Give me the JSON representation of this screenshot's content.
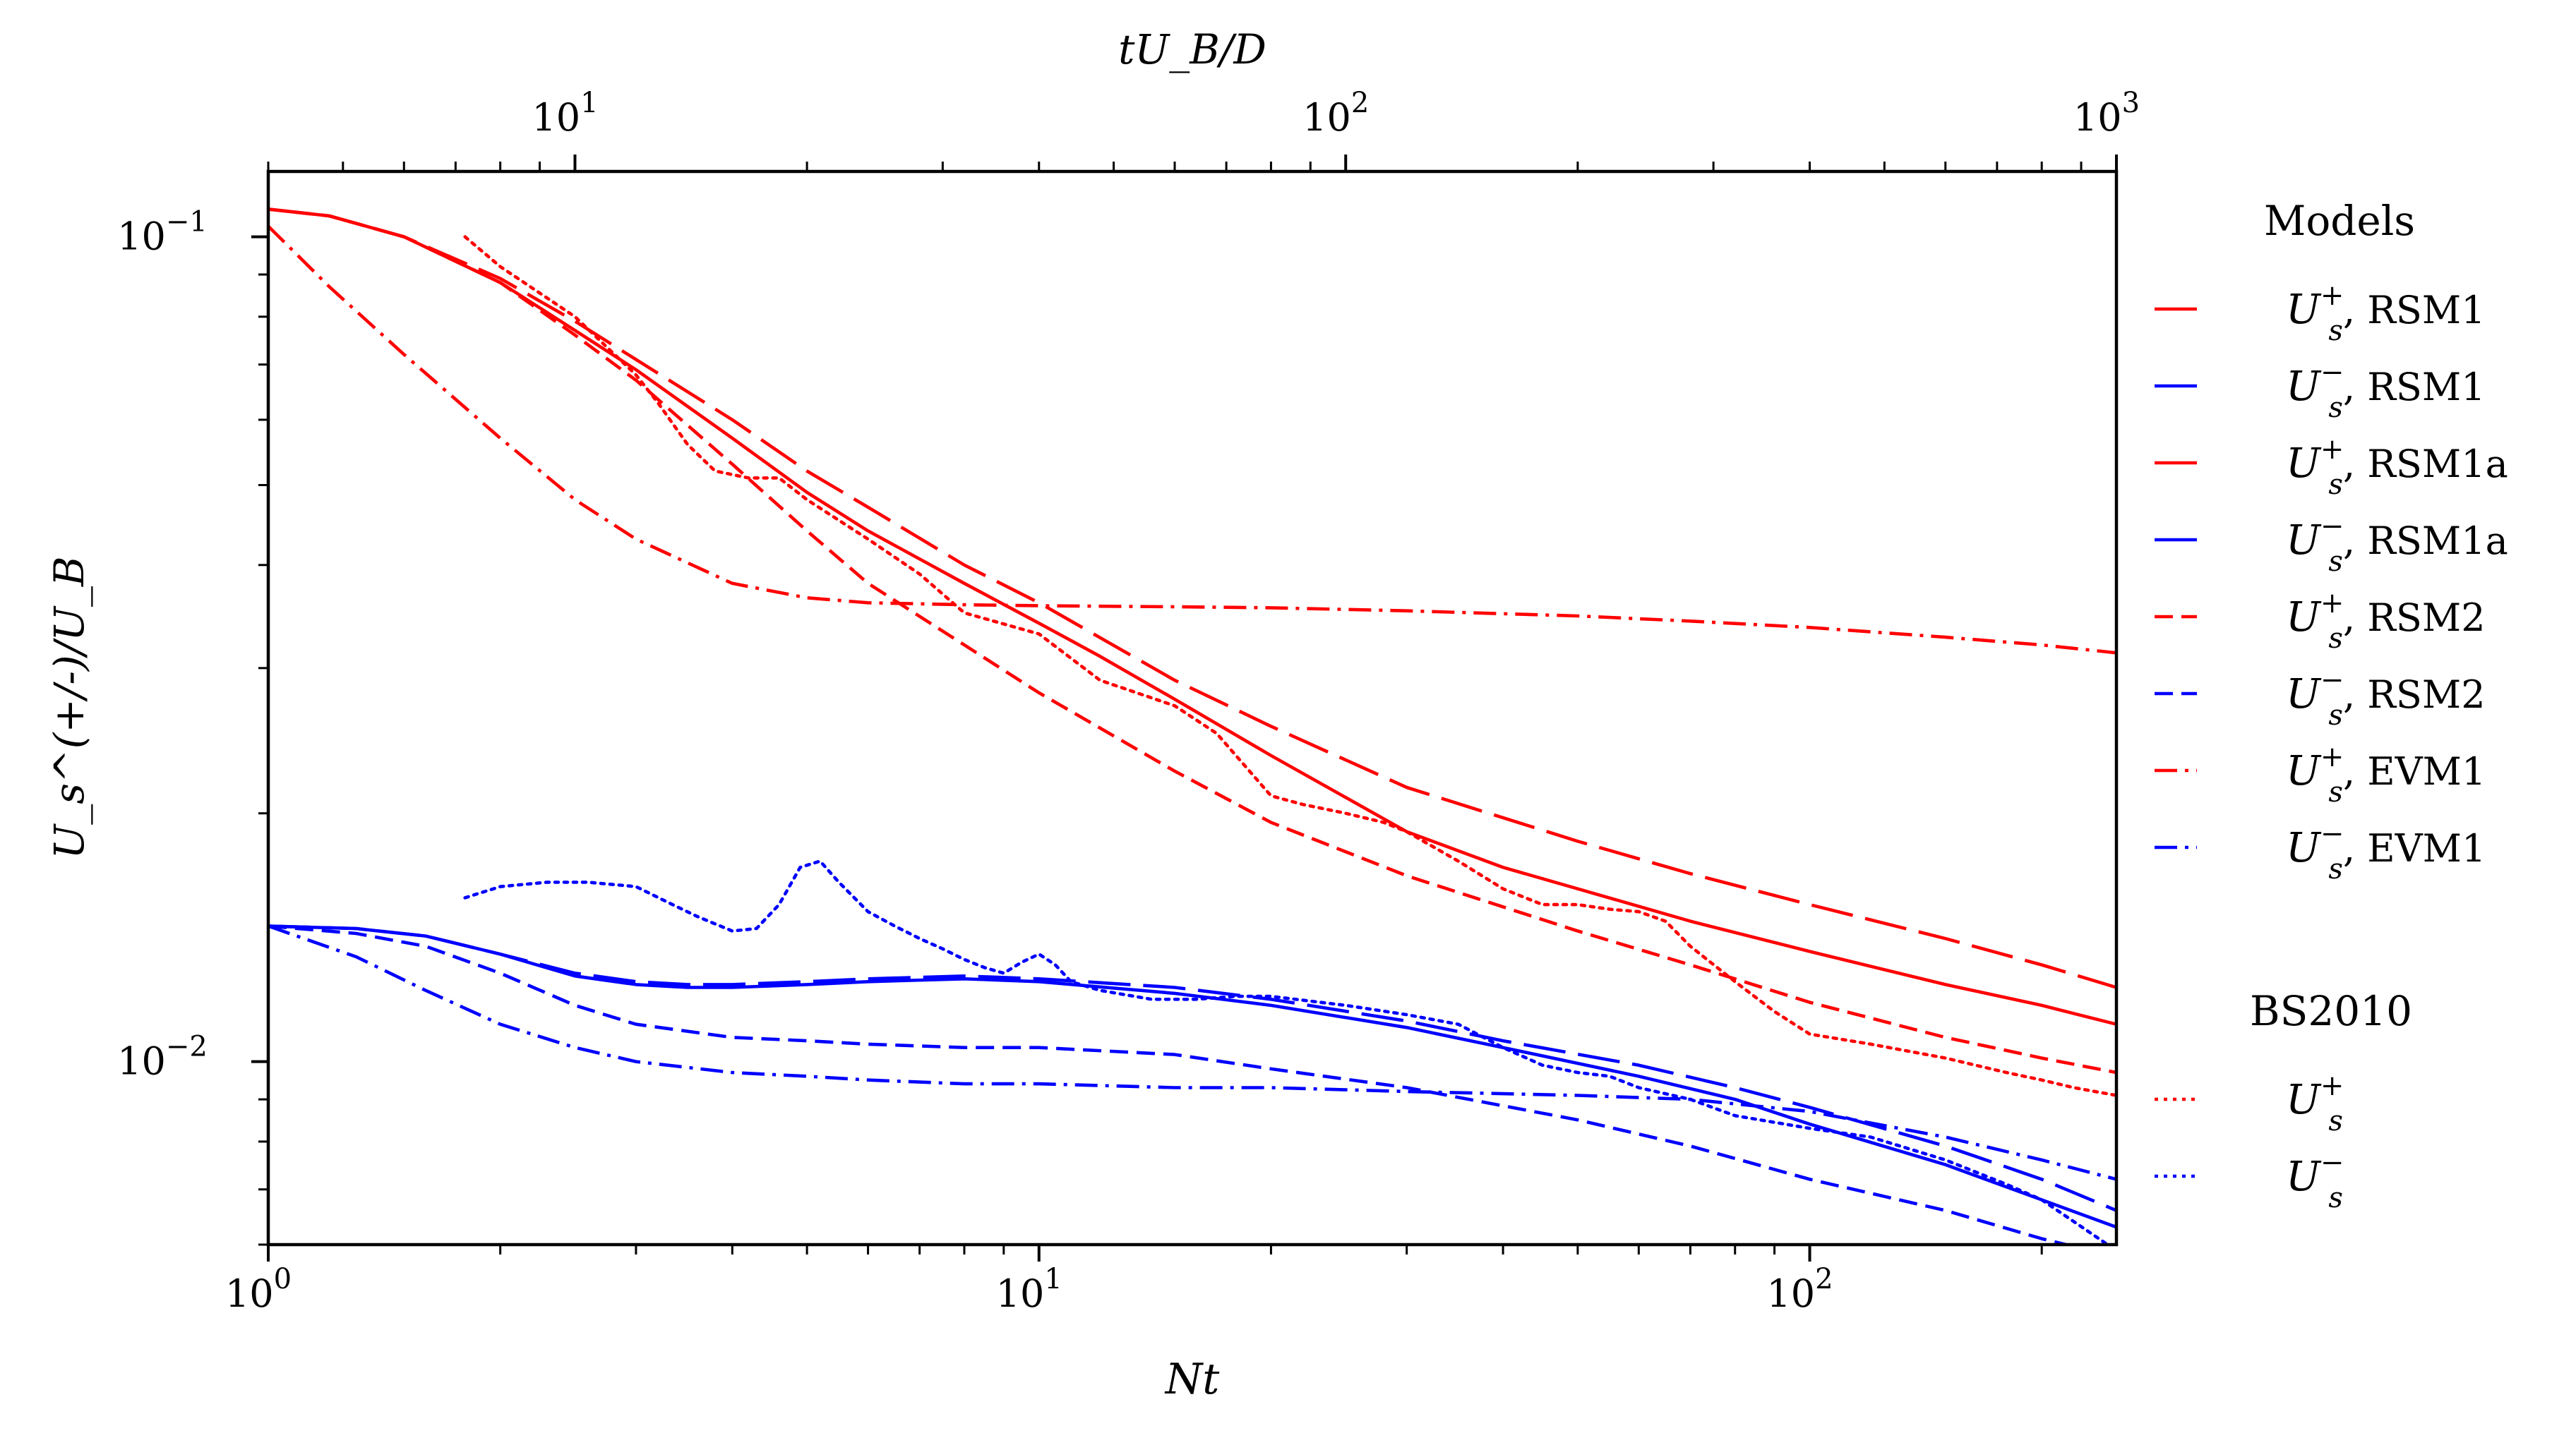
{
  "chart_data": {
    "type": "line",
    "title": "",
    "xlabel": "Nt",
    "xlabel_top": "tU_B/D",
    "ylabel": "U_s^(+/-)/U_B",
    "xscale": "log",
    "yscale": "log",
    "xlim": [
      1,
      250
    ],
    "ylim": [
      0.006,
      0.12
    ],
    "xlim_top": [
      4,
      1000
    ],
    "x_ticks": [
      {
        "value": 1,
        "mantissa": "10",
        "exp": "0"
      },
      {
        "value": 10,
        "mantissa": "10",
        "exp": "1"
      },
      {
        "value": 100,
        "mantissa": "10",
        "exp": "2"
      }
    ],
    "x_top_ticks": [
      {
        "value": 10,
        "mantissa": "10",
        "exp": "1"
      },
      {
        "value": 100,
        "mantissa": "10",
        "exp": "2"
      },
      {
        "value": 1000,
        "mantissa": "10",
        "exp": "3"
      }
    ],
    "y_ticks": [
      {
        "value": 0.1,
        "mantissa": "10",
        "exp": "−1"
      },
      {
        "value": 0.01,
        "mantissa": "10",
        "exp": "−2"
      }
    ],
    "legend": {
      "placement": "right",
      "groups": [
        {
          "title": "Models",
          "entries": [
            {
              "series": "U_s^+, RSM1",
              "sym": "U",
              "sub": "s",
              "sup": "+",
              "suffix": ", RSM1",
              "color": "#ff0000",
              "dash": "solid"
            },
            {
              "series": "U_s^-, RSM1",
              "sym": "U",
              "sub": "s",
              "sup": "−",
              "suffix": ", RSM1",
              "color": "#0000ff",
              "dash": "solid"
            },
            {
              "series": "U_s^+, RSM1a",
              "sym": "U",
              "sub": "s",
              "sup": "+",
              "suffix": ", RSM1a",
              "color": "#ff0000",
              "dash": "longdash"
            },
            {
              "series": "U_s^-, RSM1a",
              "sym": "U",
              "sub": "s",
              "sup": "−",
              "suffix": ", RSM1a",
              "color": "#0000ff",
              "dash": "longdash"
            },
            {
              "series": "U_s^+, RSM2",
              "sym": "U",
              "sub": "s",
              "sup": "+",
              "suffix": ", RSM2",
              "color": "#ff0000",
              "dash": "dashed"
            },
            {
              "series": "U_s^-, RSM2",
              "sym": "U",
              "sub": "s",
              "sup": "−",
              "suffix": ", RSM2",
              "color": "#0000ff",
              "dash": "dashed"
            },
            {
              "series": "U_s^+, EVM1",
              "sym": "U",
              "sub": "s",
              "sup": "+",
              "suffix": ", EVM1",
              "color": "#ff0000",
              "dash": "dashdot"
            },
            {
              "series": "U_s^-, EVM1",
              "sym": "U",
              "sub": "s",
              "sup": "−",
              "suffix": ", EVM1",
              "color": "#0000ff",
              "dash": "dashdot"
            }
          ]
        },
        {
          "title": "BS2010",
          "entries": [
            {
              "series": "U_s^+ BS2010",
              "sym": "U",
              "sub": "s",
              "sup": "+",
              "suffix": "",
              "color": "#ff0000",
              "dash": "dotted"
            },
            {
              "series": "U_s^- BS2010",
              "sym": "U",
              "sub": "s",
              "sup": "−",
              "suffix": "",
              "color": "#0000ff",
              "dash": "dotted"
            }
          ]
        }
      ]
    },
    "series": [
      {
        "name": "U_s^+, RSM1",
        "color": "#ff0000",
        "dash": "solid",
        "x": [
          1,
          1.2,
          1.5,
          2,
          2.5,
          3,
          4,
          5,
          6,
          8,
          10,
          12,
          15,
          20,
          30,
          40,
          50,
          70,
          100,
          150,
          200,
          250
        ],
        "y": [
          0.108,
          0.106,
          0.1,
          0.088,
          0.077,
          0.069,
          0.057,
          0.049,
          0.044,
          0.038,
          0.034,
          0.031,
          0.0275,
          0.0235,
          0.019,
          0.0172,
          0.0162,
          0.0148,
          0.0136,
          0.0124,
          0.0117,
          0.0111
        ]
      },
      {
        "name": "U_s^-, RSM1",
        "color": "#0000ff",
        "dash": "solid",
        "x": [
          1,
          1.3,
          1.6,
          2,
          2.5,
          3,
          3.5,
          4,
          5,
          6,
          8,
          10,
          15,
          20,
          30,
          40,
          60,
          80,
          100,
          150,
          200,
          250
        ],
        "y": [
          0.0146,
          0.0145,
          0.0142,
          0.0135,
          0.0127,
          0.0124,
          0.0123,
          0.0123,
          0.0124,
          0.0125,
          0.0126,
          0.0125,
          0.0121,
          0.0117,
          0.011,
          0.0104,
          0.0096,
          0.009,
          0.0084,
          0.0075,
          0.0068,
          0.0063
        ]
      },
      {
        "name": "U_s^+, RSM1a",
        "color": "#ff0000",
        "dash": "longdash",
        "x": [
          1,
          1.2,
          1.5,
          2,
          2.5,
          3,
          4,
          5,
          6,
          8,
          10,
          15,
          20,
          30,
          50,
          70,
          100,
          150,
          200,
          250
        ],
        "y": [
          0.108,
          0.106,
          0.1,
          0.089,
          0.079,
          0.071,
          0.06,
          0.052,
          0.047,
          0.04,
          0.036,
          0.029,
          0.0255,
          0.0215,
          0.0185,
          0.0169,
          0.0155,
          0.0141,
          0.0131,
          0.0123
        ]
      },
      {
        "name": "U_s^-, RSM1a",
        "color": "#0000ff",
        "dash": "longdash",
        "x": [
          1,
          1.3,
          1.6,
          2,
          2.5,
          3,
          3.5,
          4,
          5,
          6,
          8,
          10,
          15,
          20,
          30,
          40,
          60,
          80,
          100,
          150,
          200,
          250
        ],
        "y": [
          0.0146,
          0.0145,
          0.0142,
          0.0135,
          0.0128,
          0.0125,
          0.0124,
          0.0124,
          0.0125,
          0.0126,
          0.0127,
          0.0126,
          0.0123,
          0.0119,
          0.0112,
          0.0106,
          0.0099,
          0.0093,
          0.0088,
          0.0079,
          0.0072,
          0.0066
        ]
      },
      {
        "name": "U_s^+, RSM2",
        "color": "#ff0000",
        "dash": "dashed",
        "x": [
          1,
          1.2,
          1.5,
          2,
          2.5,
          3,
          4,
          5,
          6,
          8,
          10,
          15,
          20,
          30,
          50,
          70,
          100,
          150,
          200,
          250
        ],
        "y": [
          0.108,
          0.106,
          0.1,
          0.088,
          0.076,
          0.067,
          0.053,
          0.044,
          0.038,
          0.032,
          0.028,
          0.0225,
          0.0195,
          0.0168,
          0.0144,
          0.0131,
          0.0118,
          0.0107,
          0.0101,
          0.0097
        ]
      },
      {
        "name": "U_s^-, RSM2",
        "color": "#0000ff",
        "dash": "dashed",
        "x": [
          1,
          1.3,
          1.6,
          2,
          2.5,
          3,
          4,
          5,
          6,
          8,
          10,
          15,
          20,
          30,
          50,
          70,
          100,
          150,
          200,
          250
        ],
        "y": [
          0.0146,
          0.0143,
          0.0138,
          0.0128,
          0.0117,
          0.0111,
          0.0107,
          0.0106,
          0.0105,
          0.0104,
          0.0104,
          0.0102,
          0.0098,
          0.0093,
          0.0085,
          0.0079,
          0.0072,
          0.0066,
          0.0061,
          0.0058
        ]
      },
      {
        "name": "U_s^+, EVM1",
        "color": "#ff0000",
        "dash": "dashdot",
        "x": [
          1,
          1.2,
          1.5,
          2,
          2.5,
          3,
          4,
          5,
          6,
          8,
          10,
          15,
          20,
          30,
          50,
          70,
          100,
          150,
          200,
          250
        ],
        "y": [
          0.103,
          0.087,
          0.072,
          0.057,
          0.048,
          0.043,
          0.038,
          0.0365,
          0.036,
          0.0358,
          0.0357,
          0.0356,
          0.0355,
          0.0352,
          0.0347,
          0.0342,
          0.0336,
          0.0327,
          0.032,
          0.0313
        ]
      },
      {
        "name": "U_s^-, EVM1",
        "color": "#0000ff",
        "dash": "dashdot",
        "x": [
          1,
          1.3,
          1.6,
          2,
          2.5,
          3,
          4,
          5,
          6,
          8,
          10,
          15,
          20,
          30,
          50,
          70,
          100,
          150,
          200,
          250
        ],
        "y": [
          0.0146,
          0.0134,
          0.0122,
          0.0111,
          0.0104,
          0.01,
          0.0097,
          0.0096,
          0.0095,
          0.0094,
          0.0094,
          0.0093,
          0.0093,
          0.0092,
          0.0091,
          0.009,
          0.0087,
          0.0081,
          0.0076,
          0.0072
        ]
      },
      {
        "name": "U_s^+ BS2010",
        "color": "#ff0000",
        "dash": "dotted",
        "x": [
          1.8,
          2,
          2.5,
          3,
          3.2,
          3.5,
          3.8,
          4.2,
          4.6,
          5,
          6,
          7,
          8,
          10,
          12,
          15,
          17,
          20,
          22,
          25,
          28,
          30,
          35,
          40,
          45,
          50,
          55,
          60,
          65,
          70,
          80,
          90,
          100,
          120,
          150,
          180,
          200,
          220,
          250
        ],
        "y": [
          0.1,
          0.092,
          0.08,
          0.068,
          0.063,
          0.056,
          0.052,
          0.051,
          0.051,
          0.048,
          0.043,
          0.039,
          0.035,
          0.033,
          0.029,
          0.027,
          0.025,
          0.021,
          0.0205,
          0.02,
          0.0195,
          0.019,
          0.0175,
          0.0162,
          0.0155,
          0.0155,
          0.0153,
          0.0152,
          0.0148,
          0.0138,
          0.0125,
          0.0115,
          0.0108,
          0.0105,
          0.0101,
          0.0097,
          0.0095,
          0.0093,
          0.0091
        ]
      },
      {
        "name": "U_s^- BS2010",
        "color": "#0000ff",
        "dash": "dotted",
        "x": [
          1.8,
          2,
          2.3,
          2.6,
          3,
          3.3,
          3.6,
          4,
          4.3,
          4.6,
          4.9,
          5.2,
          5.5,
          6,
          6.5,
          7,
          7.5,
          8,
          8.5,
          9,
          9.5,
          10,
          10.5,
          11,
          12,
          14,
          16,
          18,
          20,
          25,
          30,
          35,
          40,
          45,
          50,
          55,
          60,
          70,
          80,
          100,
          120,
          150,
          180,
          200,
          220,
          250
        ],
        "y": [
          0.0158,
          0.0163,
          0.0165,
          0.0165,
          0.0163,
          0.0156,
          0.015,
          0.0144,
          0.0145,
          0.0155,
          0.0172,
          0.0175,
          0.0165,
          0.0152,
          0.0146,
          0.0141,
          0.0137,
          0.0133,
          0.013,
          0.0128,
          0.0132,
          0.0135,
          0.0131,
          0.0125,
          0.0122,
          0.0119,
          0.0119,
          0.012,
          0.012,
          0.0117,
          0.0114,
          0.0111,
          0.0104,
          0.0099,
          0.0097,
          0.0096,
          0.0093,
          0.009,
          0.0086,
          0.0083,
          0.0081,
          0.0076,
          0.0071,
          0.0068,
          0.0064,
          0.0059
        ]
      }
    ]
  }
}
